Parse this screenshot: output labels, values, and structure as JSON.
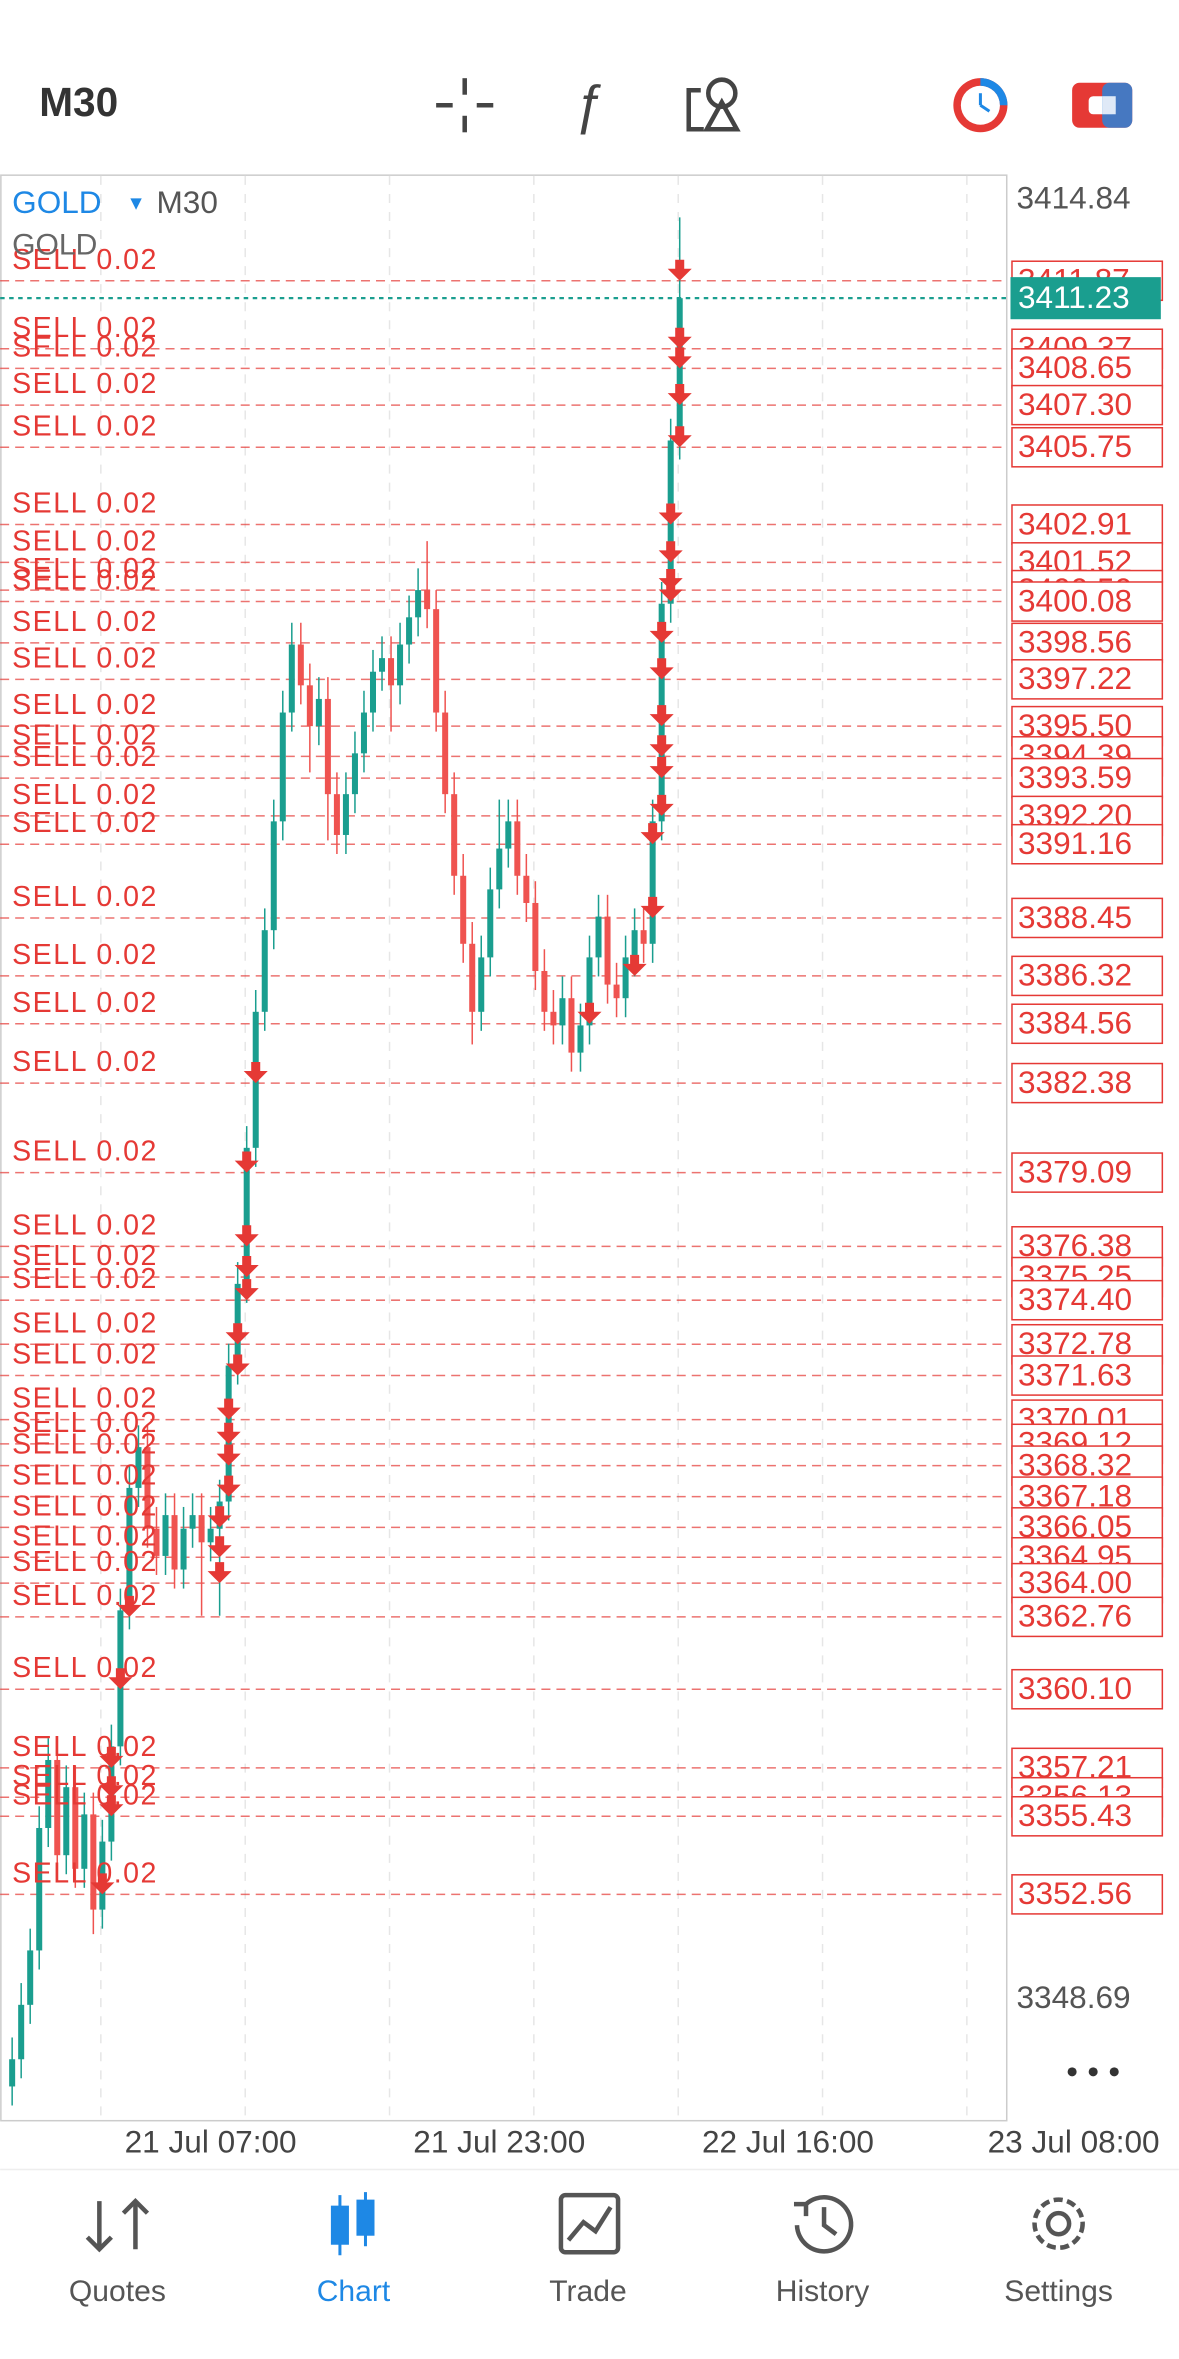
{
  "header": {
    "timeframe": "M30"
  },
  "chart": {
    "symbol": "GOLD",
    "symbol_timeframe": "M30",
    "indicator_label": "GOLD",
    "price_labels": [
      "3414.84",
      "3348.69"
    ],
    "current_price": "3411.23",
    "time_labels": [
      "21 Jul 07:00",
      "21 Jul 23:00",
      "22 Jul 16:00",
      "23 Jul 08:00"
    ],
    "candles": [
      [
        3345.5,
        3347.3,
        3344.8,
        3346.5
      ],
      [
        3346.5,
        3349.3,
        3345.8,
        3348.5
      ],
      [
        3348.5,
        3351.3,
        3347.8,
        3350.5
      ],
      [
        3350.5,
        3355.8,
        3349.8,
        3355
      ],
      [
        3355,
        3358.3,
        3354.3,
        3357.5
      ],
      [
        3357.5,
        3358.3,
        3353.3,
        3354
      ],
      [
        3354,
        3357.3,
        3353.3,
        3356.5
      ],
      [
        3356.5,
        3357.3,
        3352.8,
        3353.5
      ],
      [
        3353.5,
        3356.3,
        3352.8,
        3355.5
      ],
      [
        3355.5,
        3356.3,
        3351.1,
        3352
      ],
      [
        3352,
        3355.3,
        3351.3,
        3354.5
      ],
      [
        3354.5,
        3358.8,
        3353.8,
        3358
      ],
      [
        3358,
        3363.8,
        3357.3,
        3363
      ],
      [
        3363,
        3368.3,
        3362.3,
        3367.5
      ],
      [
        3367.5,
        3369.8,
        3366.8,
        3369
      ],
      [
        3369,
        3369.8,
        3365.3,
        3366
      ],
      [
        3366,
        3366.8,
        3364.3,
        3365
      ],
      [
        3365,
        3367.3,
        3364.3,
        3366.5
      ],
      [
        3366.5,
        3367.3,
        3363.8,
        3364.5
      ],
      [
        3364.5,
        3366.8,
        3363.8,
        3366
      ],
      [
        3366,
        3367.3,
        3365.3,
        3366.5
      ],
      [
        3366.5,
        3367.3,
        3362.8,
        3365.5
      ],
      [
        3365.5,
        3366.8,
        3364.8,
        3366
      ],
      [
        3366,
        3367.8,
        3362.8,
        3367
      ],
      [
        3367,
        3372.8,
        3366.3,
        3372
      ],
      [
        3372,
        3375.8,
        3371.3,
        3375
      ],
      [
        3375,
        3380.8,
        3374.3,
        3380
      ],
      [
        3380,
        3385.8,
        3379.3,
        3385
      ],
      [
        3385,
        3388.8,
        3384.3,
        3388
      ],
      [
        3388,
        3392.8,
        3387.3,
        3392
      ],
      [
        3392,
        3396.8,
        3391.3,
        3396
      ],
      [
        3396,
        3399.3,
        3395.3,
        3398.5
      ],
      [
        3398.5,
        3399.3,
        3396.3,
        3397
      ],
      [
        3397,
        3397.8,
        3393.8,
        3395.5
      ],
      [
        3395.5,
        3397.3,
        3394.8,
        3396.5
      ],
      [
        3396.5,
        3397.3,
        3391.3,
        3393
      ],
      [
        3393,
        3393.8,
        3390.8,
        3391.5
      ],
      [
        3391.5,
        3393.8,
        3390.8,
        3393
      ],
      [
        3393,
        3395.3,
        3392.3,
        3394.5
      ],
      [
        3394.5,
        3396.8,
        3393.8,
        3396
      ],
      [
        3396,
        3398.3,
        3395.3,
        3397.5
      ],
      [
        3397.5,
        3398.8,
        3396.8,
        3398
      ],
      [
        3398,
        3398.8,
        3395.3,
        3397
      ],
      [
        3397,
        3399.3,
        3396.3,
        3398.5
      ],
      [
        3398.5,
        3400.3,
        3397.8,
        3399.5
      ],
      [
        3399.5,
        3401.3,
        3398.8,
        3400.5
      ],
      [
        3400.5,
        3402.3,
        3399.1,
        3399.8
      ],
      [
        3399.8,
        3400.5,
        3395.3,
        3396
      ],
      [
        3396,
        3396.8,
        3392.3,
        3393
      ],
      [
        3393,
        3393.8,
        3389.3,
        3390
      ],
      [
        3390,
        3390.8,
        3386.8,
        3387.5
      ],
      [
        3387.5,
        3388.3,
        3383.8,
        3385
      ],
      [
        3385,
        3387.8,
        3384.3,
        3387
      ],
      [
        3387,
        3390.3,
        3386.3,
        3389.5
      ],
      [
        3389.5,
        3392.8,
        3388.8,
        3391
      ],
      [
        3391,
        3392.8,
        3390.3,
        3392
      ],
      [
        3392,
        3392.8,
        3389.3,
        3390
      ],
      [
        3390,
        3390.8,
        3388.3,
        3389
      ],
      [
        3389,
        3389.8,
        3385.8,
        3386.5
      ],
      [
        3386.5,
        3387.3,
        3384.3,
        3385
      ],
      [
        3385,
        3385.8,
        3383.8,
        3384.5
      ],
      [
        3384.5,
        3386.3,
        3383.8,
        3385.5
      ],
      [
        3385.5,
        3386.3,
        3382.8,
        3383.5
      ],
      [
        3383.5,
        3385.3,
        3382.8,
        3384.5
      ],
      [
        3384.5,
        3387.8,
        3383.8,
        3387
      ],
      [
        3387,
        3389.3,
        3386.3,
        3388.5
      ],
      [
        3388.5,
        3389.3,
        3385.3,
        3386
      ],
      [
        3386,
        3386.8,
        3384.8,
        3385.5
      ],
      [
        3385.5,
        3387.8,
        3384.8,
        3387
      ],
      [
        3387,
        3388.8,
        3386.3,
        3388
      ],
      [
        3388,
        3388.8,
        3386.8,
        3387.5
      ],
      [
        3387.5,
        3392.8,
        3386.8,
        3392
      ],
      [
        3392,
        3400.8,
        3391.3,
        3400
      ],
      [
        3400,
        3406.8,
        3399.3,
        3406
      ],
      [
        3406,
        3414.2,
        3405.3,
        3411.23
      ]
    ],
    "orders": [
      {
        "label": "SELL 0.02",
        "price": "3411.87"
      },
      {
        "label": "SELL 0.02",
        "price": "3409.37"
      },
      {
        "label": "SELL 0.02",
        "price": "3408.65"
      },
      {
        "label": "SELL 0.02",
        "price": "3407.30"
      },
      {
        "label": "SELL 0.02",
        "price": "3405.75"
      },
      {
        "label": "SELL 0.02",
        "price": "3402.91"
      },
      {
        "label": "SELL 0.02",
        "price": "3401.52"
      },
      {
        "label": "SELL 0.02",
        "price": "3400.50"
      },
      {
        "label": "SELL 0.02",
        "price": "3400.08"
      },
      {
        "label": "SELL 0.02",
        "price": "3398.56"
      },
      {
        "label": "SELL 0.02",
        "price": "3397.22"
      },
      {
        "label": "SELL 0.02",
        "price": "3395.50"
      },
      {
        "label": "SELL 0.02",
        "price": "3394.39"
      },
      {
        "label": "SELL 0.02",
        "price": "3393.59"
      },
      {
        "label": "SELL 0.02",
        "price": "3392.20"
      },
      {
        "label": "SELL 0.02",
        "price": "3391.16"
      },
      {
        "label": "SELL 0.02",
        "price": "3388.45"
      },
      {
        "label": "SELL 0.02",
        "price": "3386.32"
      },
      {
        "label": "SELL 0.02",
        "price": "3384.56"
      },
      {
        "label": "SELL 0.02",
        "price": "3382.38"
      },
      {
        "label": "SELL 0.02",
        "price": "3379.09"
      },
      {
        "label": "SELL 0.02",
        "price": "3376.38"
      },
      {
        "label": "SELL 0.02",
        "price": "3375.25"
      },
      {
        "label": "SELL 0.02",
        "price": "3374.40"
      },
      {
        "label": "SELL 0.02",
        "price": "3372.78"
      },
      {
        "label": "SELL 0.02",
        "price": "3371.63"
      },
      {
        "label": "SELL 0.02",
        "price": "3370.01"
      },
      {
        "label": "SELL 0.02",
        "price": "3369.12"
      },
      {
        "label": "SELL 0.02",
        "price": "3368.32"
      },
      {
        "label": "SELL 0.02",
        "price": "3367.18"
      },
      {
        "label": "SELL 0.02",
        "price": "3366.05"
      },
      {
        "label": "SELL 0.02",
        "price": "3364.95"
      },
      {
        "label": "SELL 0.02",
        "price": "3364.00"
      },
      {
        "label": "SELL 0.02",
        "price": "3362.76"
      },
      {
        "label": "SELL 0.02",
        "price": "3360.10"
      },
      {
        "label": "SELL 0.02",
        "price": "3357.21"
      },
      {
        "label": "SELL 0.02",
        "price": "3356.13"
      },
      {
        "label": "SELL 0.02",
        "price": "3355.43"
      },
      {
        "label": "SELL 0.02",
        "price": "3352.56"
      }
    ]
  },
  "nav": {
    "tabs": [
      "Quotes",
      "Chart",
      "Trade",
      "History",
      "Settings"
    ]
  }
}
